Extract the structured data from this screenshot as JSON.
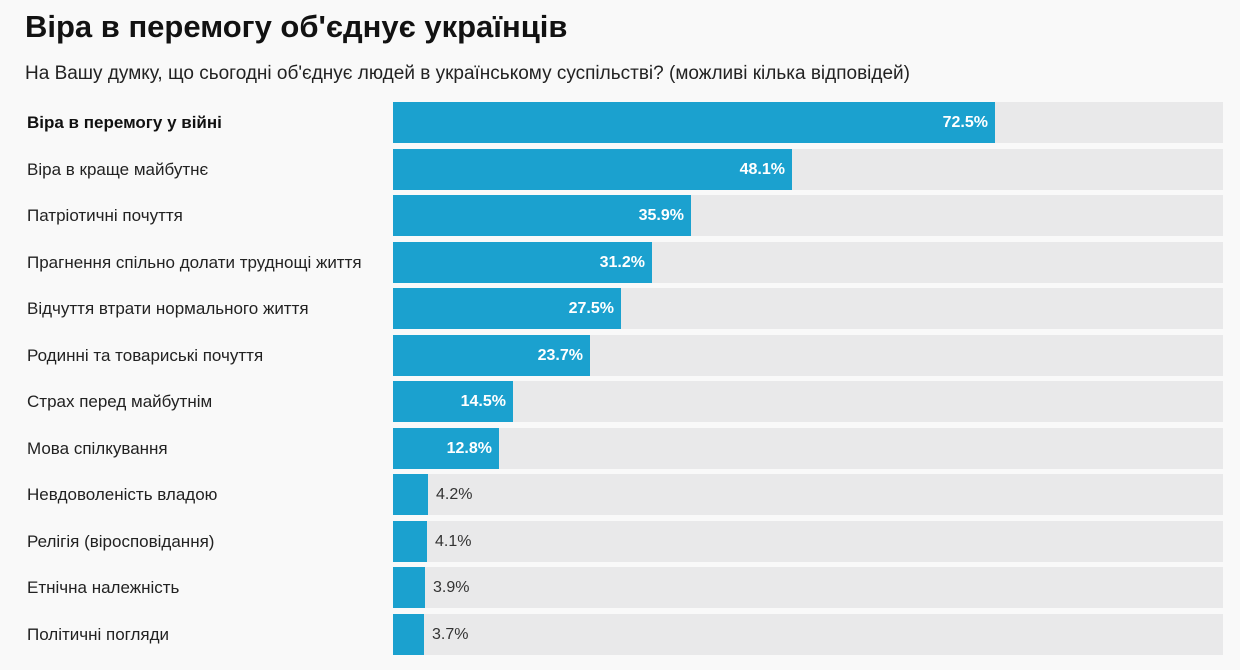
{
  "title": "Віра в перемогу об'єднує українців",
  "subtitle": "На Вашу думку, що сьогодні об'єднує людей в українському суспільстві? (можливі кілька відповідей)",
  "colors": {
    "bar": "#1ba1cf",
    "track": "#e9e9ea",
    "background": "#f9f9f9"
  },
  "chart_data": {
    "type": "bar",
    "orientation": "horizontal",
    "xlim": [
      0,
      100
    ],
    "value_suffix": "%",
    "categories": [
      "Віра в перемогу у війні",
      "Віра в краще майбутнє",
      "Патріотичні почуття",
      "Прагнення спільно долати труднощі життя",
      "Відчуття втрати нормального життя",
      "Родинні та товариські почуття",
      "Страх перед майбутнім",
      "Мова спілкування",
      "Невдоволеність владою",
      "Релігія (віросповідання)",
      "Етнічна належність",
      "Політичні погляди"
    ],
    "values": [
      72.5,
      48.1,
      35.9,
      31.2,
      27.5,
      23.7,
      14.5,
      12.8,
      4.2,
      4.1,
      3.9,
      3.7
    ],
    "labels": [
      "72.5%",
      "48.1%",
      "35.9%",
      "31.2%",
      "27.5%",
      "23.7%",
      "14.5%",
      "12.8%",
      "4.2%",
      "4.1%",
      "3.9%",
      "3.7%"
    ],
    "highlighted": [
      0
    ]
  }
}
